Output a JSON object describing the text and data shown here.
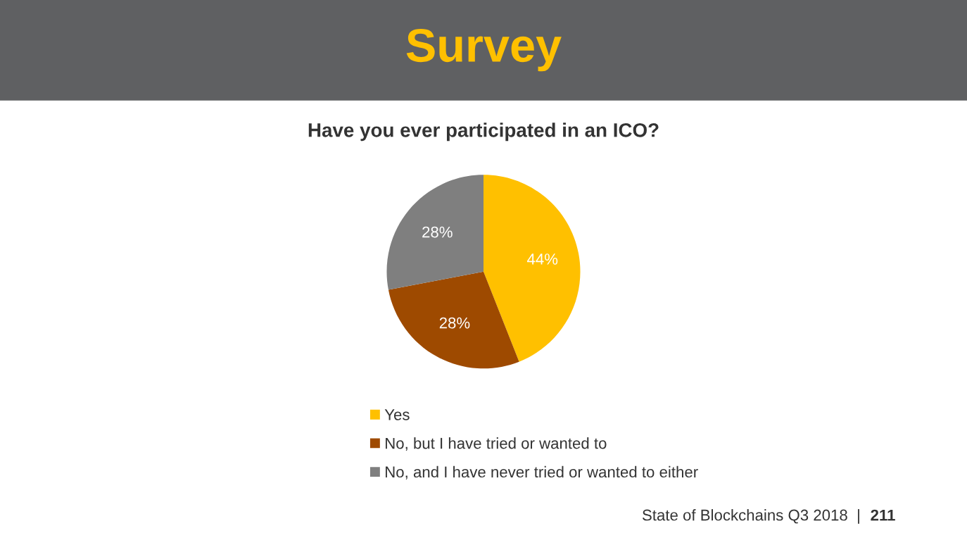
{
  "chart_data": {
    "type": "pie",
    "title": "Survey",
    "subtitle": "Have you ever participated in an ICO?",
    "categories": [
      "Yes",
      "No, but I have tried or wanted to",
      "No, and I have never tried or wanted to either"
    ],
    "values": [
      44,
      28,
      28
    ],
    "colors": [
      "#ffc000",
      "#9e4a00",
      "#7f7f7f"
    ],
    "value_labels": [
      "44%",
      "28%",
      "28%"
    ],
    "legend": "bottom",
    "annotations": [
      "State of Blockchains Q3 2018  |",
      "211"
    ]
  }
}
